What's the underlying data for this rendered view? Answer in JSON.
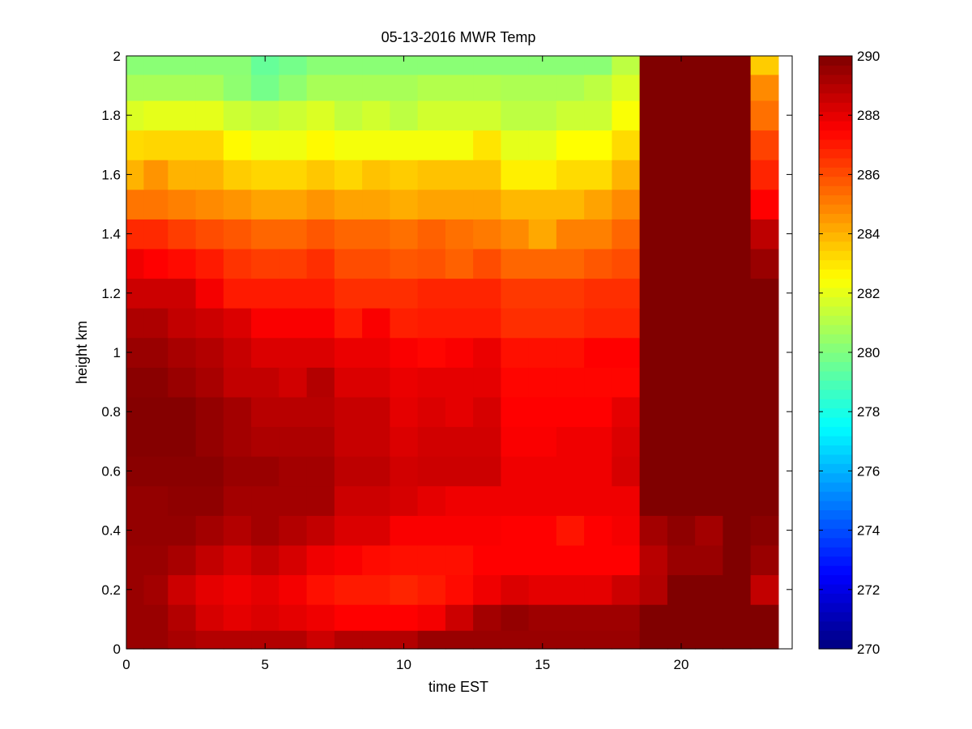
{
  "chart_data": {
    "type": "heatmap",
    "title": "05-13-2016 MWR Temp",
    "xlabel": "time EST",
    "ylabel": "height km",
    "xlim": [
      0,
      24
    ],
    "ylim": [
      0,
      2
    ],
    "x_ticks": [
      0,
      5,
      10,
      15,
      20
    ],
    "y_ticks": [
      "0",
      "0.2",
      "0.4",
      "0.6",
      "0.8",
      "1",
      "1.2",
      "1.4",
      "1.6",
      "1.8",
      "2"
    ],
    "colormap": "jet",
    "colorbar": {
      "range": [
        270,
        290
      ],
      "ticks": [
        270,
        272,
        274,
        276,
        278,
        280,
        282,
        284,
        286,
        288,
        290
      ]
    },
    "x_centers": [
      0.25,
      1.0,
      2.0,
      3.0,
      4.0,
      5.0,
      6.0,
      7.0,
      8.0,
      9.0,
      10.0,
      11.0,
      12.0,
      13.0,
      14.0,
      15.0,
      16.0,
      17.0,
      18.0,
      19.0,
      20.0,
      21.0,
      22.0,
      23.0
    ],
    "y_centers": [
      0.025,
      0.1,
      0.2,
      0.3,
      0.4,
      0.5,
      0.6,
      0.7,
      0.8,
      0.9,
      1.0,
      1.1,
      1.2,
      1.3,
      1.4,
      1.5,
      1.6,
      1.7,
      1.8,
      1.9,
      1.975
    ],
    "z": [
      [
        289.5,
        289.5,
        289.2,
        289.0,
        289.0,
        289.0,
        289.0,
        288.5,
        289.0,
        289.0,
        289.0,
        289.5,
        289.5,
        289.5,
        289.5,
        289.5,
        289.5,
        289.5,
        289.5,
        290.0,
        290.0,
        290.0,
        290.0,
        290.0
      ],
      [
        289.5,
        289.5,
        289.0,
        288.3,
        288.0,
        288.2,
        288.0,
        287.8,
        287.5,
        287.5,
        287.5,
        287.7,
        288.5,
        289.3,
        289.6,
        289.4,
        289.4,
        289.4,
        289.4,
        290.0,
        290.0,
        290.0,
        290.0,
        290.0
      ],
      [
        289.5,
        289.3,
        288.5,
        288.0,
        287.8,
        288.0,
        287.7,
        287.2,
        287.0,
        287.0,
        286.8,
        287.0,
        287.3,
        287.8,
        288.2,
        288.0,
        288.0,
        288.0,
        288.5,
        289.0,
        290.0,
        290.0,
        290.0,
        288.7
      ],
      [
        289.5,
        289.5,
        289.2,
        288.7,
        288.3,
        288.7,
        288.3,
        287.8,
        287.6,
        287.3,
        287.2,
        287.2,
        287.2,
        287.5,
        287.5,
        287.5,
        287.5,
        287.5,
        287.5,
        288.9,
        289.5,
        289.5,
        290.0,
        289.5
      ],
      [
        289.6,
        289.6,
        289.6,
        289.3,
        289.0,
        289.3,
        289.0,
        288.7,
        288.2,
        288.2,
        287.6,
        287.6,
        287.6,
        287.6,
        287.5,
        287.5,
        287.1,
        287.5,
        287.7,
        289.3,
        289.7,
        289.3,
        290.0,
        289.8
      ],
      [
        289.6,
        289.6,
        289.7,
        289.7,
        289.3,
        289.3,
        289.3,
        289.3,
        288.5,
        288.5,
        288.3,
        288.0,
        287.8,
        287.8,
        287.8,
        287.8,
        287.8,
        287.8,
        287.8,
        290.0,
        290.0,
        290.0,
        290.0,
        290.0
      ],
      [
        289.8,
        289.8,
        289.8,
        289.8,
        289.5,
        289.5,
        289.3,
        289.3,
        288.8,
        288.8,
        288.4,
        288.5,
        288.5,
        288.5,
        287.8,
        287.8,
        287.8,
        287.8,
        288.3,
        290.0,
        290.0,
        290.0,
        290.0,
        290.0
      ],
      [
        289.9,
        289.9,
        289.9,
        289.6,
        289.3,
        289.1,
        289.1,
        289.1,
        288.6,
        288.6,
        288.2,
        288.4,
        288.4,
        288.4,
        287.6,
        287.6,
        287.8,
        287.8,
        288.2,
        290.0,
        290.0,
        290.0,
        290.0,
        290.0
      ],
      [
        289.9,
        289.9,
        289.9,
        289.6,
        289.3,
        288.9,
        288.9,
        288.9,
        288.6,
        288.6,
        288.0,
        288.2,
        288.0,
        288.3,
        287.5,
        287.5,
        287.5,
        287.5,
        288.0,
        290.0,
        290.0,
        290.0,
        290.0,
        290.0
      ],
      [
        289.8,
        289.8,
        289.5,
        289.2,
        288.7,
        288.7,
        288.4,
        289.0,
        288.2,
        288.2,
        287.9,
        288.0,
        288.0,
        288.0,
        287.4,
        287.4,
        287.4,
        287.4,
        287.4,
        290.0,
        290.0,
        290.0,
        290.0,
        290.0
      ],
      [
        289.5,
        289.5,
        289.2,
        289.0,
        288.6,
        288.2,
        288.2,
        288.2,
        287.9,
        287.9,
        287.6,
        287.4,
        287.6,
        287.9,
        287.2,
        287.2,
        287.2,
        287.5,
        287.5,
        290.0,
        290.0,
        290.0,
        290.0,
        290.0
      ],
      [
        289.1,
        289.1,
        288.7,
        288.5,
        288.2,
        287.6,
        287.6,
        287.6,
        287.0,
        287.6,
        286.9,
        287.0,
        287.0,
        287.0,
        286.6,
        286.6,
        286.6,
        286.8,
        286.8,
        290.0,
        290.0,
        290.0,
        290.0,
        290.0
      ],
      [
        288.5,
        288.5,
        288.5,
        287.7,
        287.0,
        287.0,
        287.0,
        287.0,
        286.6,
        286.6,
        286.6,
        286.8,
        286.8,
        286.8,
        286.4,
        286.4,
        286.4,
        286.6,
        286.6,
        290.0,
        290.0,
        290.0,
        290.0,
        290.0
      ],
      [
        287.8,
        287.5,
        287.3,
        287.0,
        286.5,
        286.3,
        286.3,
        286.6,
        286.0,
        286.0,
        285.8,
        285.9,
        285.6,
        286.0,
        285.5,
        285.5,
        285.5,
        285.8,
        286.0,
        290.0,
        290.0,
        290.0,
        290.0,
        289.5
      ],
      [
        286.7,
        286.7,
        286.3,
        286.0,
        285.8,
        285.5,
        285.5,
        285.8,
        285.5,
        285.5,
        285.3,
        285.6,
        285.3,
        285.1,
        284.8,
        284.2,
        285.0,
        285.0,
        285.5,
        290.0,
        290.0,
        290.0,
        290.0,
        288.8
      ],
      [
        285.2,
        285.2,
        285.0,
        284.8,
        284.6,
        284.3,
        284.3,
        284.6,
        284.3,
        284.3,
        284.1,
        284.3,
        284.3,
        284.3,
        283.9,
        283.9,
        283.9,
        284.3,
        284.8,
        290.0,
        290.0,
        290.0,
        290.0,
        287.5
      ],
      [
        284.0,
        284.6,
        284.0,
        284.0,
        283.5,
        283.3,
        283.3,
        283.6,
        283.3,
        283.7,
        283.5,
        283.7,
        283.7,
        283.7,
        282.8,
        282.8,
        283.2,
        283.2,
        284.0,
        290.0,
        290.0,
        290.0,
        290.0,
        286.8
      ],
      [
        283.2,
        283.3,
        283.3,
        283.3,
        282.6,
        282.2,
        282.2,
        282.6,
        282.3,
        282.3,
        282.3,
        282.3,
        282.3,
        283.0,
        282.0,
        282.0,
        282.5,
        282.5,
        283.2,
        290.0,
        290.0,
        290.0,
        290.0,
        286.2
      ],
      [
        281.8,
        282.0,
        282.0,
        282.0,
        281.5,
        281.3,
        281.5,
        281.8,
        281.3,
        281.6,
        281.2,
        281.6,
        281.6,
        281.6,
        281.2,
        281.2,
        281.5,
        281.5,
        282.4,
        290.0,
        290.0,
        290.0,
        290.0,
        285.3
      ],
      [
        280.8,
        280.8,
        280.8,
        280.8,
        280.3,
        279.8,
        280.3,
        280.8,
        280.8,
        280.8,
        280.8,
        281.0,
        281.0,
        281.0,
        280.9,
        280.9,
        280.9,
        281.2,
        281.8,
        290.0,
        290.0,
        290.0,
        290.0,
        284.8
      ],
      [
        280.2,
        280.2,
        280.2,
        280.2,
        280.2,
        279.5,
        279.8,
        280.2,
        280.2,
        280.2,
        280.2,
        280.2,
        280.2,
        280.2,
        280.2,
        280.2,
        280.2,
        280.2,
        281.2,
        290.0,
        290.0,
        290.0,
        290.0,
        283.5
      ]
    ]
  }
}
